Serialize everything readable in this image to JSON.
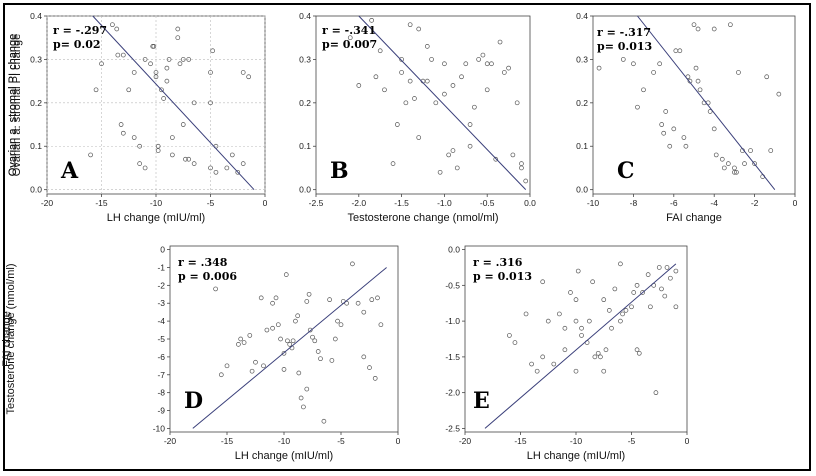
{
  "chart_data": [
    {
      "id": "A",
      "type": "scatter",
      "panel_letter": "A",
      "stats": [
        "r = -.297",
        "p= 0.02"
      ],
      "xlabel": "LH change (mIU/ml)",
      "ylabel": "Ovarian a. stromal PI change",
      "xlim": [
        -20,
        0
      ],
      "ylim": [
        -0.01,
        0.4
      ],
      "xticks": [
        -20,
        -15,
        -10,
        -5,
        0
      ],
      "xtick_labels": [
        "-20",
        "-15",
        "-10",
        "-5",
        "0"
      ],
      "yticks": [
        0,
        0.1,
        0.2,
        0.3,
        0.4
      ],
      "ytick_labels": [
        "0.0",
        "0.1",
        "0.2",
        "0.3",
        "0.4"
      ],
      "grid": true,
      "regression": [
        [
          -15.8,
          0.4
        ],
        [
          -1.0,
          0.0
        ]
      ],
      "points": [
        [
          -16.0,
          0.08
        ],
        [
          -15.5,
          0.23
        ],
        [
          -15.0,
          0.29
        ],
        [
          -14.0,
          0.38
        ],
        [
          -13.6,
          0.37
        ],
        [
          -13.5,
          0.31
        ],
        [
          -13.0,
          0.31
        ],
        [
          -13.2,
          0.15
        ],
        [
          -13.0,
          0.13
        ],
        [
          -12.5,
          0.23
        ],
        [
          -12.0,
          0.27
        ],
        [
          -12.0,
          0.12
        ],
        [
          -11.5,
          0.1
        ],
        [
          -11.5,
          0.06
        ],
        [
          -11.0,
          0.05
        ],
        [
          -11.0,
          0.3
        ],
        [
          -10.5,
          0.29
        ],
        [
          -10.3,
          0.33
        ],
        [
          -10.2,
          0.33
        ],
        [
          -10.0,
          0.27
        ],
        [
          -10.0,
          0.26
        ],
        [
          -9.8,
          0.1
        ],
        [
          -9.8,
          0.09
        ],
        [
          -9.5,
          0.23
        ],
        [
          -9.3,
          0.21
        ],
        [
          -9.0,
          0.28
        ],
        [
          -9.0,
          0.25
        ],
        [
          -8.8,
          0.3
        ],
        [
          -8.5,
          0.12
        ],
        [
          -8.5,
          0.08
        ],
        [
          -8.0,
          0.37
        ],
        [
          -8.0,
          0.35
        ],
        [
          -7.8,
          0.29
        ],
        [
          -7.5,
          0.3
        ],
        [
          -7.5,
          0.15
        ],
        [
          -7.3,
          0.07
        ],
        [
          -7.0,
          0.07
        ],
        [
          -7.0,
          0.3
        ],
        [
          -6.5,
          0.2
        ],
        [
          -6.5,
          0.06
        ],
        [
          -5.0,
          0.27
        ],
        [
          -5.0,
          0.2
        ],
        [
          -5.0,
          0.05
        ],
        [
          -4.8,
          0.32
        ],
        [
          -4.5,
          0.1
        ],
        [
          -4.5,
          0.04
        ],
        [
          -3.5,
          0.05
        ],
        [
          -3.0,
          0.08
        ],
        [
          -2.5,
          0.04
        ],
        [
          -2.0,
          0.06
        ],
        [
          -2.0,
          0.27
        ],
        [
          -1.5,
          0.26
        ]
      ]
    },
    {
      "id": "B",
      "type": "scatter",
      "panel_letter": "B",
      "stats": [
        "r = -.341",
        "p= 0.007"
      ],
      "xlabel": "Testosterone change (nmol/ml)",
      "ylabel": "Ovarian a. stromal PI change",
      "xlim": [
        -2.5,
        0
      ],
      "ylim": [
        -0.01,
        0.4
      ],
      "xticks": [
        -2.5,
        -2.0,
        -1.5,
        -1.0,
        -0.5,
        0.0
      ],
      "xtick_labels": [
        "-2.5",
        "-2.0",
        "-1.5",
        "-1.0",
        "-0.5",
        "0.0"
      ],
      "yticks": [
        0,
        0.1,
        0.2,
        0.3,
        0.4
      ],
      "ytick_labels": [
        "0.0",
        "0.1",
        "0.2",
        "0.3",
        "0.4"
      ],
      "grid": false,
      "regression": [
        [
          -2.0,
          0.4
        ],
        [
          -0.05,
          0.0
        ]
      ],
      "points": [
        [
          -2.1,
          0.35
        ],
        [
          -2.0,
          0.24
        ],
        [
          -1.85,
          0.39
        ],
        [
          -1.8,
          0.26
        ],
        [
          -1.75,
          0.32
        ],
        [
          -1.7,
          0.23
        ],
        [
          -1.6,
          0.06
        ],
        [
          -1.55,
          0.15
        ],
        [
          -1.5,
          0.3
        ],
        [
          -1.5,
          0.27
        ],
        [
          -1.45,
          0.2
        ],
        [
          -1.4,
          0.38
        ],
        [
          -1.4,
          0.25
        ],
        [
          -1.35,
          0.21
        ],
        [
          -1.3,
          0.37
        ],
        [
          -1.3,
          0.12
        ],
        [
          -1.25,
          0.25
        ],
        [
          -1.2,
          0.25
        ],
        [
          -1.2,
          0.33
        ],
        [
          -1.15,
          0.3
        ],
        [
          -1.1,
          0.2
        ],
        [
          -1.05,
          0.04
        ],
        [
          -1.0,
          0.22
        ],
        [
          -1.0,
          0.29
        ],
        [
          -0.95,
          0.08
        ],
        [
          -0.9,
          0.24
        ],
        [
          -0.9,
          0.09
        ],
        [
          -0.85,
          0.05
        ],
        [
          -0.8,
          0.26
        ],
        [
          -0.75,
          0.29
        ],
        [
          -0.7,
          0.15
        ],
        [
          -0.7,
          0.1
        ],
        [
          -0.65,
          0.19
        ],
        [
          -0.6,
          0.3
        ],
        [
          -0.55,
          0.31
        ],
        [
          -0.5,
          0.29
        ],
        [
          -0.5,
          0.23
        ],
        [
          -0.45,
          0.29
        ],
        [
          -0.4,
          0.07
        ],
        [
          -0.35,
          0.34
        ],
        [
          -0.3,
          0.27
        ],
        [
          -0.25,
          0.28
        ],
        [
          -0.2,
          0.08
        ],
        [
          -0.15,
          0.2
        ],
        [
          -0.1,
          0.05
        ],
        [
          -0.1,
          0.06
        ],
        [
          -0.05,
          0.02
        ]
      ]
    },
    {
      "id": "C",
      "type": "scatter",
      "panel_letter": "C",
      "stats": [
        "r = -.317",
        "p= 0.013"
      ],
      "xlabel": "FAI change",
      "ylabel": "Ovarian a. stromal PI change",
      "xlim": [
        -10,
        0
      ],
      "ylim": [
        -0.01,
        0.4
      ],
      "xticks": [
        -10,
        -8,
        -6,
        -4,
        -2,
        0
      ],
      "xtick_labels": [
        "-10",
        "-8",
        "-6",
        "-4",
        "-2",
        "0"
      ],
      "yticks": [
        0,
        0.1,
        0.2,
        0.3,
        0.4
      ],
      "ytick_labels": [
        "0.0",
        "0.1",
        "0.2",
        "0.3",
        "0.4"
      ],
      "grid": false,
      "regression": [
        [
          -7.8,
          0.4
        ],
        [
          -1.0,
          0.0
        ]
      ],
      "points": [
        [
          -9.7,
          0.28
        ],
        [
          -8.5,
          0.3
        ],
        [
          -8.0,
          0.29
        ],
        [
          -7.8,
          0.19
        ],
        [
          -7.5,
          0.23
        ],
        [
          -7.0,
          0.27
        ],
        [
          -6.7,
          0.29
        ],
        [
          -6.6,
          0.15
        ],
        [
          -6.5,
          0.13
        ],
        [
          -6.4,
          0.18
        ],
        [
          -6.2,
          0.1
        ],
        [
          -6.0,
          0.14
        ],
        [
          -5.9,
          0.32
        ],
        [
          -5.7,
          0.32
        ],
        [
          -5.5,
          0.12
        ],
        [
          -5.4,
          0.1
        ],
        [
          -5.3,
          0.26
        ],
        [
          -5.2,
          0.25
        ],
        [
          -5.0,
          0.38
        ],
        [
          -4.9,
          0.28
        ],
        [
          -4.8,
          0.37
        ],
        [
          -4.8,
          0.25
        ],
        [
          -4.7,
          0.23
        ],
        [
          -4.5,
          0.2
        ],
        [
          -4.3,
          0.2
        ],
        [
          -4.2,
          0.18
        ],
        [
          -4.0,
          0.37
        ],
        [
          -4.0,
          0.14
        ],
        [
          -3.9,
          0.08
        ],
        [
          -3.6,
          0.07
        ],
        [
          -3.5,
          0.05
        ],
        [
          -3.3,
          0.06
        ],
        [
          -3.2,
          0.38
        ],
        [
          -3.0,
          0.05
        ],
        [
          -3.0,
          0.04
        ],
        [
          -2.9,
          0.04
        ],
        [
          -2.8,
          0.27
        ],
        [
          -2.6,
          0.09
        ],
        [
          -2.5,
          0.06
        ],
        [
          -2.2,
          0.09
        ],
        [
          -2.0,
          0.06
        ],
        [
          -1.6,
          0.03
        ],
        [
          -1.4,
          0.26
        ],
        [
          -1.2,
          0.09
        ],
        [
          -0.8,
          0.22
        ]
      ]
    },
    {
      "id": "D",
      "type": "scatter",
      "panel_letter": "D",
      "stats": [
        "r = .348",
        "p = 0.006"
      ],
      "xlabel": "LH change (mIU/ml)",
      "ylabel": "FAI change",
      "xlim": [
        -20,
        0
      ],
      "ylim": [
        -10.2,
        0.2
      ],
      "xticks": [
        -20,
        -15,
        -10,
        -5,
        0
      ],
      "xtick_labels": [
        "-20",
        "-15",
        "-10",
        "-5",
        "0"
      ],
      "yticks": [
        0,
        -1,
        -2,
        -3,
        -4,
        -5,
        -6,
        -7,
        -8,
        -9,
        -10
      ],
      "ytick_labels": [
        "0",
        "-1",
        "-2",
        "-3",
        "-4",
        "-5",
        "-6",
        "-7",
        "-8",
        "-9",
        "-10"
      ],
      "grid": false,
      "regression": [
        [
          -18.0,
          -10.0
        ],
        [
          -1.0,
          -1.0
        ]
      ],
      "points": [
        [
          -16.0,
          -2.2
        ],
        [
          -15.5,
          -7.0
        ],
        [
          -15.0,
          -6.5
        ],
        [
          -14.0,
          -5.3
        ],
        [
          -13.8,
          -5.0
        ],
        [
          -13.5,
          -5.2
        ],
        [
          -13.0,
          -4.8
        ],
        [
          -12.8,
          -6.8
        ],
        [
          -12.5,
          -6.3
        ],
        [
          -12.0,
          -2.7
        ],
        [
          -11.8,
          -6.5
        ],
        [
          -11.5,
          -4.5
        ],
        [
          -11.0,
          -4.4
        ],
        [
          -11.0,
          -3.0
        ],
        [
          -10.7,
          -2.7
        ],
        [
          -10.5,
          -4.2
        ],
        [
          -10.3,
          -5.0
        ],
        [
          -10.0,
          -5.8
        ],
        [
          -10.0,
          -6.7
        ],
        [
          -9.8,
          -1.4
        ],
        [
          -9.7,
          -5.1
        ],
        [
          -9.5,
          -5.3
        ],
        [
          -9.3,
          -5.5
        ],
        [
          -9.2,
          -5.1
        ],
        [
          -9.0,
          -4.0
        ],
        [
          -8.8,
          -3.7
        ],
        [
          -8.7,
          -6.9
        ],
        [
          -8.5,
          -8.3
        ],
        [
          -8.3,
          -8.8
        ],
        [
          -8.0,
          -7.8
        ],
        [
          -8.0,
          -2.9
        ],
        [
          -7.8,
          -2.5
        ],
        [
          -7.7,
          -4.5
        ],
        [
          -7.5,
          -4.9
        ],
        [
          -7.3,
          -5.1
        ],
        [
          -7.0,
          -5.7
        ],
        [
          -6.8,
          -6.1
        ],
        [
          -6.5,
          -9.6
        ],
        [
          -6.0,
          -2.8
        ],
        [
          -5.8,
          -6.2
        ],
        [
          -5.5,
          -5.0
        ],
        [
          -5.3,
          -4.0
        ],
        [
          -5.0,
          -4.2
        ],
        [
          -4.8,
          -2.9
        ],
        [
          -4.5,
          -3.0
        ],
        [
          -4.0,
          -0.8
        ],
        [
          -3.5,
          -3.0
        ],
        [
          -3.0,
          -3.5
        ],
        [
          -3.0,
          -6.0
        ],
        [
          -2.5,
          -6.6
        ],
        [
          -2.3,
          -2.8
        ],
        [
          -2.0,
          -7.2
        ],
        [
          -1.8,
          -2.7
        ],
        [
          -1.5,
          -4.2
        ]
      ]
    },
    {
      "id": "E",
      "type": "scatter",
      "panel_letter": "E",
      "stats": [
        "r = .316",
        "p = 0.013"
      ],
      "xlabel": "LH change (mIU/ml)",
      "ylabel": "Testosterone change (nmol/ml)",
      "xlim": [
        -20,
        0
      ],
      "ylim": [
        -2.55,
        0.05
      ],
      "xticks": [
        -20,
        -15,
        -10,
        -5,
        0
      ],
      "xtick_labels": [
        "-20",
        "-15",
        "-10",
        "-5",
        "0"
      ],
      "yticks": [
        0,
        -0.5,
        -1.0,
        -1.5,
        -2.0,
        -2.5
      ],
      "ytick_labels": [
        "0.0",
        "-0.5",
        "-1.0",
        "-1.5",
        "-2.0",
        "-2.5"
      ],
      "grid": false,
      "regression": [
        [
          -18.2,
          -2.5
        ],
        [
          -1.0,
          -0.2
        ]
      ],
      "points": [
        [
          -16.0,
          -1.2
        ],
        [
          -15.5,
          -1.3
        ],
        [
          -14.5,
          -0.9
        ],
        [
          -14.0,
          -1.6
        ],
        [
          -13.5,
          -1.7
        ],
        [
          -13.0,
          -1.5
        ],
        [
          -13.0,
          -0.45
        ],
        [
          -12.5,
          -1.0
        ],
        [
          -12.0,
          -1.6
        ],
        [
          -11.5,
          -0.9
        ],
        [
          -11.0,
          -1.1
        ],
        [
          -11.0,
          -1.4
        ],
        [
          -10.5,
          -0.6
        ],
        [
          -10.0,
          -0.7
        ],
        [
          -10.0,
          -1.0
        ],
        [
          -10.0,
          -1.7
        ],
        [
          -9.8,
          -0.3
        ],
        [
          -9.5,
          -1.1
        ],
        [
          -9.5,
          -1.2
        ],
        [
          -9.0,
          -1.3
        ],
        [
          -8.8,
          -1.0
        ],
        [
          -8.5,
          -0.45
        ],
        [
          -8.3,
          -1.5
        ],
        [
          -8.0,
          -1.45
        ],
        [
          -7.8,
          -1.5
        ],
        [
          -7.5,
          -1.7
        ],
        [
          -7.5,
          -0.7
        ],
        [
          -7.3,
          -1.4
        ],
        [
          -7.0,
          -0.85
        ],
        [
          -6.8,
          -1.1
        ],
        [
          -6.5,
          -0.55
        ],
        [
          -6.0,
          -0.2
        ],
        [
          -6.0,
          -1.0
        ],
        [
          -5.8,
          -0.9
        ],
        [
          -5.5,
          -0.85
        ],
        [
          -5.0,
          -0.8
        ],
        [
          -4.8,
          -0.6
        ],
        [
          -4.5,
          -0.5
        ],
        [
          -4.5,
          -1.4
        ],
        [
          -4.3,
          -1.45
        ],
        [
          -4.0,
          -0.6
        ],
        [
          -3.5,
          -0.35
        ],
        [
          -3.3,
          -0.8
        ],
        [
          -3.0,
          -0.5
        ],
        [
          -2.8,
          -2.0
        ],
        [
          -2.5,
          -0.25
        ],
        [
          -2.3,
          -0.55
        ],
        [
          -2.0,
          -0.65
        ],
        [
          -1.8,
          -0.25
        ],
        [
          -1.5,
          -0.4
        ],
        [
          -1.0,
          -0.3
        ],
        [
          -1.0,
          -0.8
        ]
      ]
    }
  ]
}
